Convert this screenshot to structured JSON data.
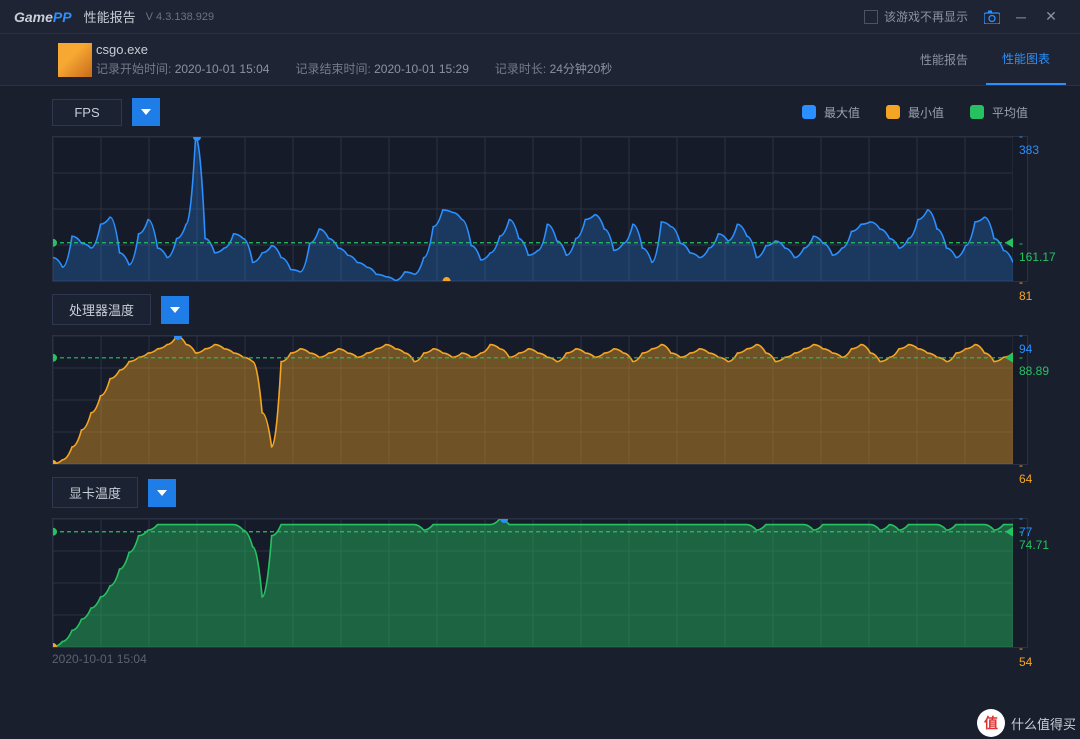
{
  "app": {
    "logo_text": "Game",
    "logo_suffix": "PP",
    "title": "性能报告",
    "version": "V 4.3.138.929",
    "hide_label": "该游戏不再显示"
  },
  "info": {
    "exe": "csgo.exe",
    "start_label": "记录开始时间:",
    "start_value": "2020-10-01 15:04",
    "end_label": "记录结束时间:",
    "end_value": "2020-10-01 15:29",
    "duration_label": "记录时长:",
    "duration_value": "24分钟20秒"
  },
  "tabs": {
    "report": "性能报告",
    "chart": "性能图表",
    "active": "chart"
  },
  "legend": {
    "max": {
      "label": "最大值",
      "color": "#2a8fff"
    },
    "min": {
      "label": "最小值",
      "color": "#f5a524"
    },
    "avg": {
      "label": "平均值",
      "color": "#26c262"
    }
  },
  "colors": {
    "grid": "#2a3142",
    "bg": "#161b29",
    "max": "#2a8fff",
    "min": "#f5a524",
    "avg": "#26c262",
    "text_muted": "#7e8699"
  },
  "time_axis_label": "2020-10-01 15:04",
  "charts": [
    {
      "id": "fps",
      "title": "FPS",
      "type": "line",
      "height": 146,
      "ylim": [
        81,
        383
      ],
      "max": 383,
      "min": 81,
      "avg": 161.17,
      "fill_color": "#2a8fff",
      "fill_opacity": 0.25,
      "line_color": "#2a8fff",
      "min_marker_x": 0.41,
      "values": [
        130,
        110,
        175,
        160,
        150,
        200,
        215,
        140,
        115,
        180,
        210,
        150,
        130,
        170,
        200,
        383,
        170,
        140,
        150,
        180,
        170,
        120,
        140,
        155,
        130,
        105,
        100,
        160,
        190,
        170,
        150,
        135,
        120,
        110,
        95,
        90,
        82,
        100,
        95,
        130,
        195,
        230,
        225,
        210,
        155,
        125,
        140,
        175,
        210,
        170,
        135,
        145,
        200,
        165,
        135,
        170,
        210,
        220,
        190,
        145,
        160,
        200,
        150,
        120,
        205,
        195,
        160,
        140,
        130,
        150,
        180,
        165,
        200,
        175,
        130,
        155,
        165,
        150,
        130,
        150,
        175,
        160,
        135,
        150,
        185,
        200,
        205,
        190,
        170,
        150,
        170,
        210,
        230,
        190,
        150,
        130,
        155,
        205,
        215,
        170,
        145,
        120
      ]
    },
    {
      "id": "cpu_temp",
      "title": "处理器温度",
      "type": "area",
      "height": 130,
      "ylim": [
        64,
        94
      ],
      "max": 94,
      "min": 64,
      "avg": 88.89,
      "fill_color": "#f5a524",
      "fill_opacity": 0.4,
      "line_color": "#f5a524",
      "min_marker_x": 0.0,
      "max_marker_x": 0.13,
      "values": [
        64,
        65,
        68,
        72,
        76,
        80,
        84,
        86,
        88,
        89,
        90,
        91,
        92,
        94,
        92,
        90,
        91,
        92,
        91,
        90,
        89,
        88,
        76,
        68,
        88,
        90,
        91,
        90,
        89,
        90,
        91,
        90,
        89,
        90,
        91,
        92,
        91,
        90,
        88,
        90,
        91,
        90,
        89,
        90,
        89,
        90,
        92,
        91,
        89,
        90,
        91,
        90,
        89,
        88,
        90,
        91,
        90,
        89,
        90,
        91,
        90,
        88,
        90,
        91,
        92,
        90,
        89,
        90,
        91,
        90,
        89,
        88,
        90,
        91,
        92,
        90,
        88,
        89,
        90,
        91,
        92,
        91,
        90,
        89,
        91,
        92,
        90,
        88,
        89,
        91,
        92,
        91,
        90,
        89,
        88,
        90,
        91,
        92,
        90,
        88,
        89,
        90
      ]
    },
    {
      "id": "gpu_temp",
      "title": "显卡温度",
      "type": "area",
      "height": 130,
      "ylim": [
        54,
        77
      ],
      "max": 77,
      "min": 54,
      "avg": 74.71,
      "fill_color": "#26c262",
      "fill_opacity": 0.45,
      "line_color": "#26c262",
      "min_marker_x": 0.0,
      "max_marker_x": 0.47,
      "values": [
        54,
        55,
        57,
        59,
        61,
        63,
        65,
        68,
        71,
        74,
        75,
        76,
        76,
        76,
        76,
        76,
        76,
        76,
        76,
        76,
        75,
        72,
        63,
        74,
        76,
        76,
        76,
        76,
        76,
        76,
        76,
        76,
        76,
        76,
        76,
        76,
        76,
        76,
        76,
        75,
        76,
        76,
        76,
        76,
        76,
        76,
        76,
        77,
        76,
        76,
        76,
        76,
        76,
        76,
        76,
        76,
        76,
        76,
        76,
        76,
        76,
        76,
        76,
        76,
        76,
        76,
        76,
        76,
        76,
        76,
        76,
        76,
        76,
        76,
        75,
        76,
        76,
        76,
        76,
        76,
        75,
        76,
        76,
        76,
        76,
        76,
        76,
        75,
        76,
        75,
        76,
        76,
        76,
        76,
        75,
        76,
        76,
        76,
        76,
        75,
        76,
        76
      ]
    }
  ],
  "watermark": {
    "icon": "值",
    "text": "什么值得买"
  }
}
